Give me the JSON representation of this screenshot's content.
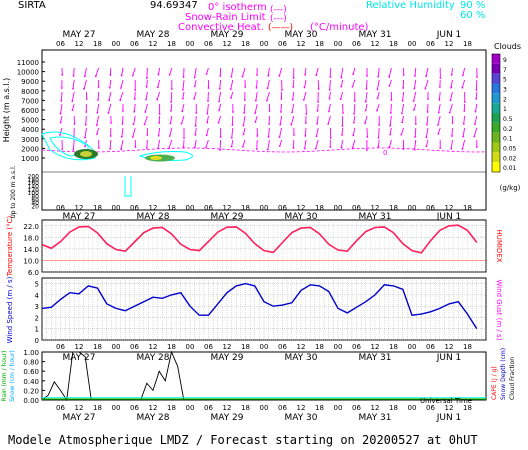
{
  "header": {
    "site": "SIRTA",
    "coords": "94.69347",
    "legend_isotherm": "0° isotherm",
    "legend_snowrain": "Snow-Rain Limit",
    "legend_convective": "Convective Heat.",
    "legend_convective_unit": "(°C/minute)",
    "legend_isotherm_swatch": "(---)",
    "legend_snowrain_swatch": "(---)",
    "legend_convective_swatch": "(——)",
    "rh_label": "Relative Humidity",
    "rh_90": "90 %",
    "rh_60": "60 %"
  },
  "colors": {
    "magenta": "#ff00ff",
    "cyan": "#00ffff",
    "red": "#ff0000",
    "blue": "#0000cc",
    "temp_line": "#ff1f5a",
    "gray_bg": "#d8d8d8"
  },
  "time_axis": {
    "days": [
      "MAY 27",
      "MAY 28",
      "MAY 29",
      "MAY 30",
      "MAY 31",
      "JUN 1"
    ],
    "hours": [
      "06",
      "12",
      "18",
      "00",
      "06",
      "12",
      "18",
      "00",
      "06",
      "12",
      "18",
      "00",
      "06",
      "12",
      "18",
      "00",
      "06",
      "12",
      "18",
      "00",
      "06",
      "12",
      "18"
    ],
    "xlabel": "Universal Time"
  },
  "panel_height": {
    "ylabel": "Height (m a.s.l.)",
    "ylabel_low": "Up to 200 m a.s.l.",
    "ticks_upper": [
      "11000",
      "10000",
      "9000",
      "8000",
      "7000",
      "6000",
      "5000",
      "4000",
      "3000",
      "2000",
      "1000"
    ],
    "ticks_lower": [
      "200",
      "180",
      "160",
      "140",
      "120",
      "100",
      "80",
      "60",
      "40",
      "20"
    ],
    "isotherm_label": "0",
    "clouds_title": "Clouds",
    "clouds_ticks": [
      "9",
      "7",
      "5",
      "3",
      "2",
      "1",
      "0.5",
      "0.2",
      "0.1",
      "0.05",
      "0.02",
      "0.01"
    ],
    "clouds_unit": "(g/kg)"
  },
  "panel_temp": {
    "ylabel": "Temperature (°C)",
    "ylabel_right": "HUMIDEX",
    "ticks": [
      "22.0",
      "18.0",
      "14.0",
      "10.0",
      "6.0"
    ]
  },
  "panel_wind": {
    "ylabel": "Wind Speed (m / s)",
    "ylabel_right": "Wind Gust (m / s)",
    "ticks": [
      "5",
      "4",
      "3",
      "2",
      "1",
      "0"
    ]
  },
  "panel_rain": {
    "ylabel_rain": "Rain (mm / hour)",
    "ylabel_snow": "Snow (cm / hour)",
    "ylabel_right_cape": "CAPE (J / g)",
    "ylabel_right_snowdepth": "Snow Depth (cm)",
    "ylabel_right_cloud": "Cloud Fraction",
    "ticks": [
      "1.00",
      "0.80",
      "0.60",
      "0.40",
      "0.20",
      "0.00"
    ]
  },
  "footer": {
    "text": "Modele Atmospherique LMDZ / Forecast starting on 20200527 at 0hUT"
  },
  "chart_data": [
    {
      "type": "line",
      "title": "",
      "ylabel": "Temperature (°C)",
      "x_hours_from_start": [
        0,
        3,
        6,
        9,
        12,
        15,
        18,
        21,
        24,
        27,
        30,
        33,
        36,
        39,
        42,
        45,
        48,
        51,
        54,
        57,
        60,
        63,
        66,
        69,
        72,
        75,
        78,
        81,
        84,
        87,
        90,
        93,
        96,
        99,
        102,
        105,
        108,
        111,
        114,
        117,
        120,
        123,
        126,
        129,
        132,
        135,
        138,
        141
      ],
      "series": [
        {
          "values": [
            15.5,
            14.2,
            16.5,
            19.8,
            21.6,
            21.8,
            19.5,
            15.8,
            13.8,
            13.2,
            16.4,
            19.6,
            21.2,
            21.4,
            19.2,
            15.6,
            13.8,
            13.4,
            16.6,
            19.8,
            21.5,
            21.6,
            19.4,
            15.8,
            13.4,
            12.8,
            16.2,
            19.6,
            21.2,
            21.4,
            19.2,
            15.6,
            13.6,
            13.2,
            16.8,
            20.0,
            21.4,
            21.6,
            19.6,
            15.8,
            13.4,
            12.6,
            16.8,
            20.4,
            22.0,
            22.2,
            20.4,
            16.2
          ]
        }
      ],
      "ylim": [
        6,
        24
      ]
    },
    {
      "type": "line",
      "title": "",
      "ylabel": "Wind Speed (m / s)",
      "x_hours_from_start": [
        0,
        3,
        6,
        9,
        12,
        15,
        18,
        21,
        24,
        27,
        30,
        33,
        36,
        39,
        42,
        45,
        48,
        51,
        54,
        57,
        60,
        63,
        66,
        69,
        72,
        75,
        78,
        81,
        84,
        87,
        90,
        93,
        96,
        99,
        102,
        105,
        108,
        111,
        114,
        117,
        120,
        123,
        126,
        129,
        132,
        135,
        138,
        141
      ],
      "series": [
        {
          "values": [
            2.8,
            2.9,
            3.6,
            4.2,
            4.1,
            4.8,
            4.6,
            3.2,
            2.8,
            2.6,
            3.0,
            3.4,
            3.8,
            3.7,
            4.0,
            4.2,
            3.0,
            2.2,
            2.2,
            3.2,
            4.2,
            4.8,
            5.0,
            4.8,
            3.4,
            3.0,
            3.1,
            3.3,
            4.4,
            4.9,
            4.8,
            4.3,
            2.8,
            2.4,
            2.9,
            3.4,
            4.0,
            4.9,
            4.8,
            4.5,
            2.2,
            2.3,
            2.5,
            2.8,
            3.2,
            3.4,
            2.3,
            1.0
          ]
        }
      ],
      "ylim": [
        0,
        5.5
      ]
    },
    {
      "type": "line",
      "title": "",
      "ylabel": "Rain (mm / hour)",
      "x_hours_from_start": [
        0,
        2,
        4,
        6,
        8,
        10,
        12,
        14,
        16,
        18,
        20,
        22,
        24,
        26,
        28,
        30,
        32,
        34,
        36,
        38,
        40,
        42,
        44,
        46,
        48
      ],
      "series": [
        {
          "values": [
            0.0,
            0.1,
            0.38,
            0.2,
            0.0,
            1.05,
            1.1,
            0.9,
            0.0,
            0.0,
            0.0,
            0.0,
            0.0,
            0.0,
            0.02,
            0.0,
            0.0,
            0.35,
            0.2,
            0.6,
            0.4,
            1.0,
            0.7,
            0.0,
            0.0
          ]
        }
      ],
      "ylim": [
        0,
        1.0
      ]
    }
  ]
}
